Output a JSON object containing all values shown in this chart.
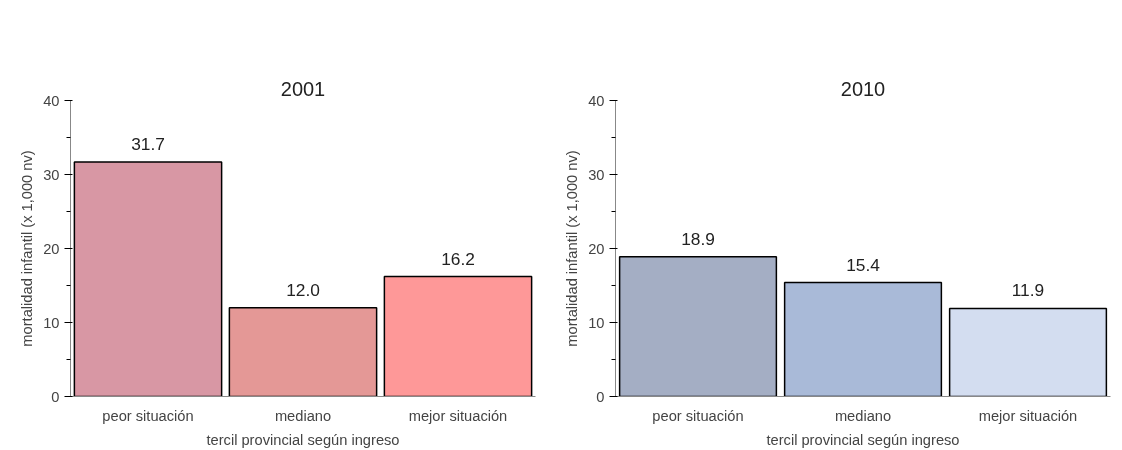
{
  "chart_data": [
    {
      "type": "bar",
      "title": "2001",
      "xlabel": "tercil provincial según ingreso",
      "ylabel": "mortalidad infantil (x 1,000 nv)",
      "categories": [
        "peor situación",
        "mediano",
        "mejor situación"
      ],
      "values": [
        31.7,
        12.0,
        16.2
      ],
      "colors": [
        "#d897a4",
        "#e49896",
        "#fe9898"
      ],
      "ylim": [
        0,
        40
      ],
      "yticks": [
        0,
        10,
        20,
        30,
        40
      ],
      "data_labels": true,
      "value_labels": [
        "31.7",
        "12.0",
        "16.2"
      ],
      "grid": false
    },
    {
      "type": "bar",
      "title": "2010",
      "xlabel": "tercil provincial según ingreso",
      "ylabel": "mortalidad infantil (x 1,000 nv)",
      "categories": [
        "peor situación",
        "mediano",
        "mejor situación"
      ],
      "values": [
        18.9,
        15.4,
        11.9
      ],
      "colors": [
        "#a4aec4",
        "#a9bad8",
        "#d3ddf0"
      ],
      "ylim": [
        0,
        40
      ],
      "yticks": [
        0,
        10,
        20,
        30,
        40
      ],
      "data_labels": true,
      "value_labels": [
        "18.9",
        "15.4",
        "11.9"
      ],
      "grid": false
    }
  ]
}
